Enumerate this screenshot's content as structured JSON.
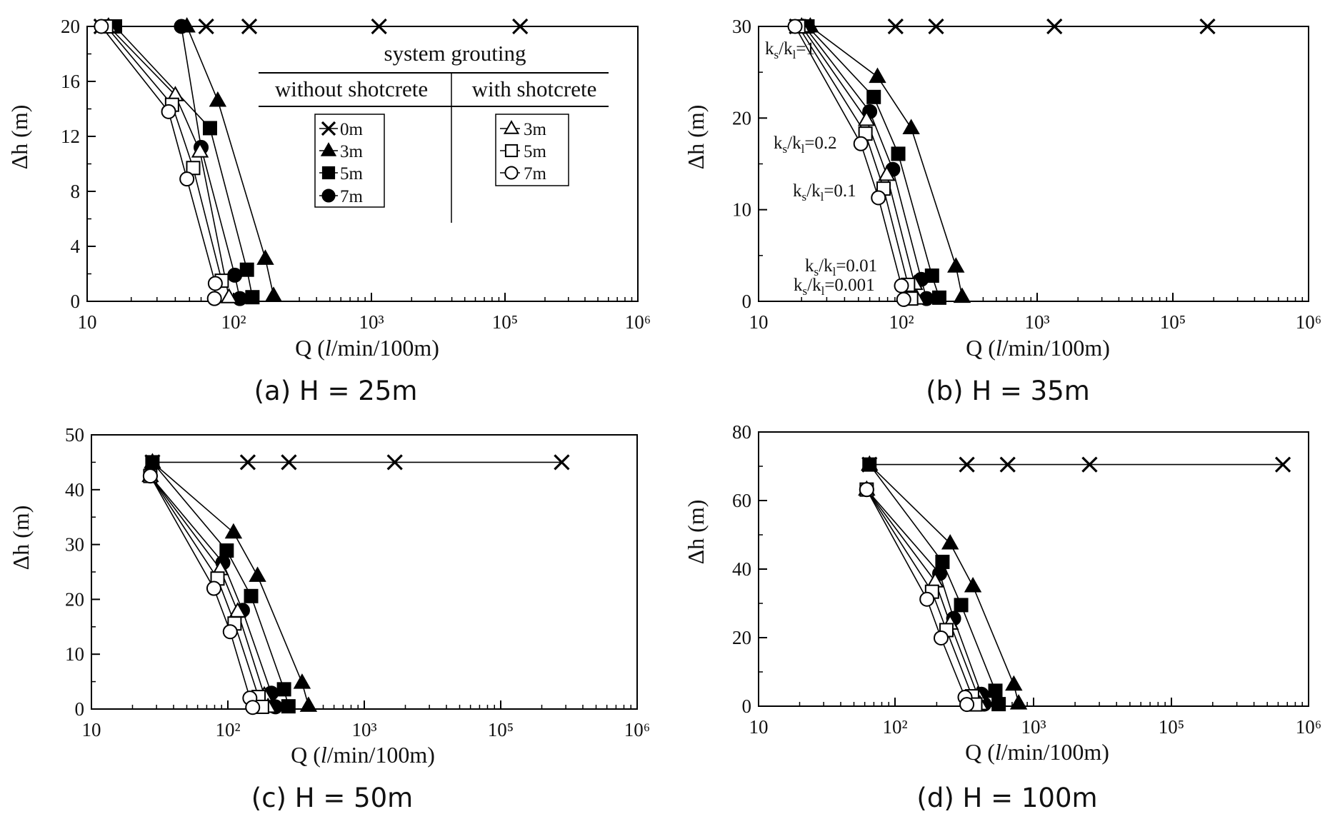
{
  "colors": {
    "ink": "#000000",
    "background": "#ffffff"
  },
  "xtick_labels": [
    "10",
    "10²",
    "10³",
    "10⁵",
    "10⁶"
  ],
  "legend": {
    "title": "system grouting",
    "col_without": "without shotcrete",
    "col_with": "with shotcrete",
    "without": [
      {
        "label": "0m",
        "marker": "x"
      },
      {
        "label": "3m",
        "marker": "triangle-filled"
      },
      {
        "label": "5m",
        "marker": "square-filled"
      },
      {
        "label": "7m",
        "marker": "circle-filled"
      }
    ],
    "with": [
      {
        "label": "3m",
        "marker": "triangle-open"
      },
      {
        "label": "5m",
        "marker": "square-open"
      },
      {
        "label": "7m",
        "marker": "circle-open"
      }
    ]
  },
  "ratio_annotations": {
    "prefix_main": "k",
    "prefix_sub": "s",
    "slash": "/k",
    "denom_sub": "l",
    "items": [
      {
        "value": "=1"
      },
      {
        "value": "=0.2"
      },
      {
        "value": "=0.1"
      },
      {
        "value": "=0.01"
      },
      {
        "value": "=0.001"
      }
    ]
  },
  "chart_data": [
    {
      "type": "line",
      "caption": "(a) H = 25m",
      "xlabel_prefix": "Q (",
      "xlabel_italic": "l",
      "xlabel_suffix": "/min/100m)",
      "ylabel": "Δh (m)",
      "xscale": "log",
      "xlim": [
        10,
        1000000
      ],
      "ylim": [
        0,
        20
      ],
      "yticks": [
        0,
        4,
        8,
        12,
        16,
        20
      ],
      "grid": false,
      "legend_position": "upper-right",
      "series": [
        {
          "name": "0m",
          "marker": "x",
          "x": [
            12.5,
            65,
            130,
            1300,
            130000
          ],
          "y": [
            20,
            20,
            20,
            20,
            20
          ]
        },
        {
          "name": "3m",
          "marker": "triangle-filled",
          "x": [
            48,
            78,
            170,
            195
          ],
          "y": [
            20,
            14.6,
            3.1,
            0.4
          ]
        },
        {
          "name": "5m",
          "marker": "square-filled",
          "x": [
            15.5,
            69,
            125,
            137
          ],
          "y": [
            20,
            12.6,
            2.3,
            0.3
          ]
        },
        {
          "name": "7m",
          "marker": "circle-filled",
          "x": [
            44,
            60,
            102,
            111
          ],
          "y": [
            20,
            11.2,
            1.9,
            0.2
          ]
        },
        {
          "name": "3m",
          "marker": "triangle-open",
          "x": [
            14,
            40,
            59,
            93
          ],
          "y": [
            20,
            15.0,
            10.9,
            0.3
          ]
        },
        {
          "name": "5m",
          "marker": "square-open",
          "x": [
            13.5,
            38,
            53,
            83
          ],
          "y": [
            20,
            14.3,
            9.7,
            1.5
          ]
        },
        {
          "name": "7m",
          "marker": "circle-open",
          "x": [
            12.5,
            36,
            48,
            75,
            74
          ],
          "y": [
            20,
            13.8,
            8.9,
            1.3,
            0.2
          ]
        }
      ]
    },
    {
      "type": "line",
      "caption": "(b) H = 35m",
      "xlabel_prefix": "Q (",
      "xlabel_italic": "l",
      "xlabel_suffix": "/min/100m)",
      "ylabel": "Δh (m)",
      "xscale": "log",
      "xlim": [
        10,
        1000000
      ],
      "ylim": [
        0,
        30
      ],
      "yticks": [
        0,
        10,
        20,
        30
      ],
      "grid": false,
      "series": [
        {
          "name": "0m",
          "marker": "x",
          "x": [
            18.5,
            91,
            180,
            1800,
            180000
          ],
          "y": [
            30,
            30,
            30,
            30,
            30
          ]
        },
        {
          "name": "3m",
          "marker": "triangle-filled",
          "x": [
            23,
            68,
            118,
            252,
            280
          ],
          "y": [
            30,
            24.5,
            18.9,
            3.8,
            0.5
          ]
        },
        {
          "name": "5m",
          "marker": "square-filled",
          "x": [
            22,
            64,
            95,
            168,
            190
          ],
          "y": [
            30,
            22.3,
            16.1,
            2.8,
            0.4
          ]
        },
        {
          "name": "7m",
          "marker": "circle-filled",
          "x": [
            21,
            60,
            87,
            140,
            153
          ],
          "y": [
            30,
            20.7,
            14.4,
            2.4,
            0.3
          ]
        },
        {
          "name": "3m",
          "marker": "triangle-open",
          "x": [
            20,
            57,
            79,
            125,
            130
          ],
          "y": [
            30,
            19.8,
            13.8,
            1.9,
            0.3
          ]
        },
        {
          "name": "5m",
          "marker": "square-open",
          "x": [
            19,
            56,
            75,
            112,
            118
          ],
          "y": [
            30,
            18.3,
            12.3,
            1.8,
            0.3
          ]
        },
        {
          "name": "7m",
          "marker": "circle-open",
          "x": [
            18,
            52,
            69,
            100,
            104
          ],
          "y": [
            30,
            17.2,
            11.3,
            1.7,
            0.2
          ]
        }
      ]
    },
    {
      "type": "line",
      "caption": "(c) H = 50m",
      "xlabel_prefix": "Q (",
      "xlabel_italic": "l",
      "xlabel_suffix": "/min/100m)",
      "ylabel": "Δh (m)",
      "xscale": "log",
      "xlim": [
        10,
        1000000
      ],
      "ylim": [
        0,
        50
      ],
      "yticks": [
        0,
        10,
        20,
        30,
        40,
        50
      ],
      "grid": false,
      "series": [
        {
          "name": "0m",
          "marker": "x",
          "x": [
            28,
            140,
            280,
            2800,
            280000
          ],
          "y": [
            45,
            45,
            45,
            45,
            45
          ]
        },
        {
          "name": "3m",
          "marker": "triangle-filled",
          "x": [
            28,
            110,
            165,
            350,
            390
          ],
          "y": [
            45,
            32.2,
            24.3,
            4.8,
            0.6
          ]
        },
        {
          "name": "5m",
          "marker": "square-filled",
          "x": [
            28,
            98,
            148,
            258,
            278
          ],
          "y": [
            45,
            28.9,
            20.6,
            3.6,
            0.5
          ]
        },
        {
          "name": "7m",
          "marker": "circle-filled",
          "x": [
            27,
            92,
            128,
            208,
            223
          ],
          "y": [
            42.5,
            26.7,
            18.0,
            2.9,
            0.4
          ]
        },
        {
          "name": "3m",
          "marker": "triangle-open",
          "x": [
            27,
            88,
            118,
            185,
            197
          ],
          "y": [
            42.5,
            25.5,
            17.8,
            2.5,
            0.4
          ]
        },
        {
          "name": "5m",
          "marker": "square-open",
          "x": [
            27,
            84,
            112,
            168,
            178
          ],
          "y": [
            42.5,
            23.8,
            15.6,
            2.2,
            0.4
          ]
        },
        {
          "name": "7m",
          "marker": "circle-open",
          "x": [
            27,
            79,
            104,
            145,
            152
          ],
          "y": [
            42.5,
            22.0,
            14.1,
            2.0,
            0.3
          ]
        }
      ]
    },
    {
      "type": "line",
      "caption": "(d) H = 100m",
      "xlabel_prefix": "Q (",
      "xlabel_italic": "l",
      "xlabel_suffix": "/min/100m)",
      "ylabel": "Δh (m)",
      "xscale": "log",
      "xlim": [
        10,
        1000000
      ],
      "ylim": [
        0,
        80
      ],
      "yticks": [
        0,
        20,
        40,
        60,
        80
      ],
      "grid": false,
      "series": [
        {
          "name": "0m",
          "marker": "x",
          "x": [
            65,
            330,
            650,
            6500,
            650000
          ],
          "y": [
            70.5,
            70.5,
            70.5,
            70.5,
            70.5
          ]
        },
        {
          "name": "3m",
          "marker": "triangle-filled",
          "x": [
            65,
            250,
            365,
            720,
            780
          ],
          "y": [
            70.5,
            47.5,
            35.0,
            6.3,
            0.8
          ]
        },
        {
          "name": "5m",
          "marker": "square-filled",
          "x": [
            65,
            220,
            300,
            530,
            560
          ],
          "y": [
            70.5,
            42.1,
            29.5,
            4.5,
            0.6
          ]
        },
        {
          "name": "7m",
          "marker": "circle-filled",
          "x": [
            62,
            210,
            265,
            420,
            440
          ],
          "y": [
            63.2,
            38.7,
            25.6,
            3.5,
            0.6
          ]
        },
        {
          "name": "3m",
          "marker": "triangle-open",
          "x": [
            62,
            195,
            250,
            395,
            410
          ],
          "y": [
            63.2,
            36.4,
            24.1,
            3.2,
            0.6
          ]
        },
        {
          "name": "5m",
          "marker": "square-open",
          "x": [
            62,
            185,
            235,
            360,
            380
          ],
          "y": [
            63.2,
            33.4,
            22.2,
            2.9,
            0.5
          ]
        },
        {
          "name": "7m",
          "marker": "circle-open",
          "x": [
            62,
            170,
            215,
            320,
            330
          ],
          "y": [
            63.2,
            31.2,
            19.9,
            2.6,
            0.5
          ]
        }
      ]
    }
  ]
}
